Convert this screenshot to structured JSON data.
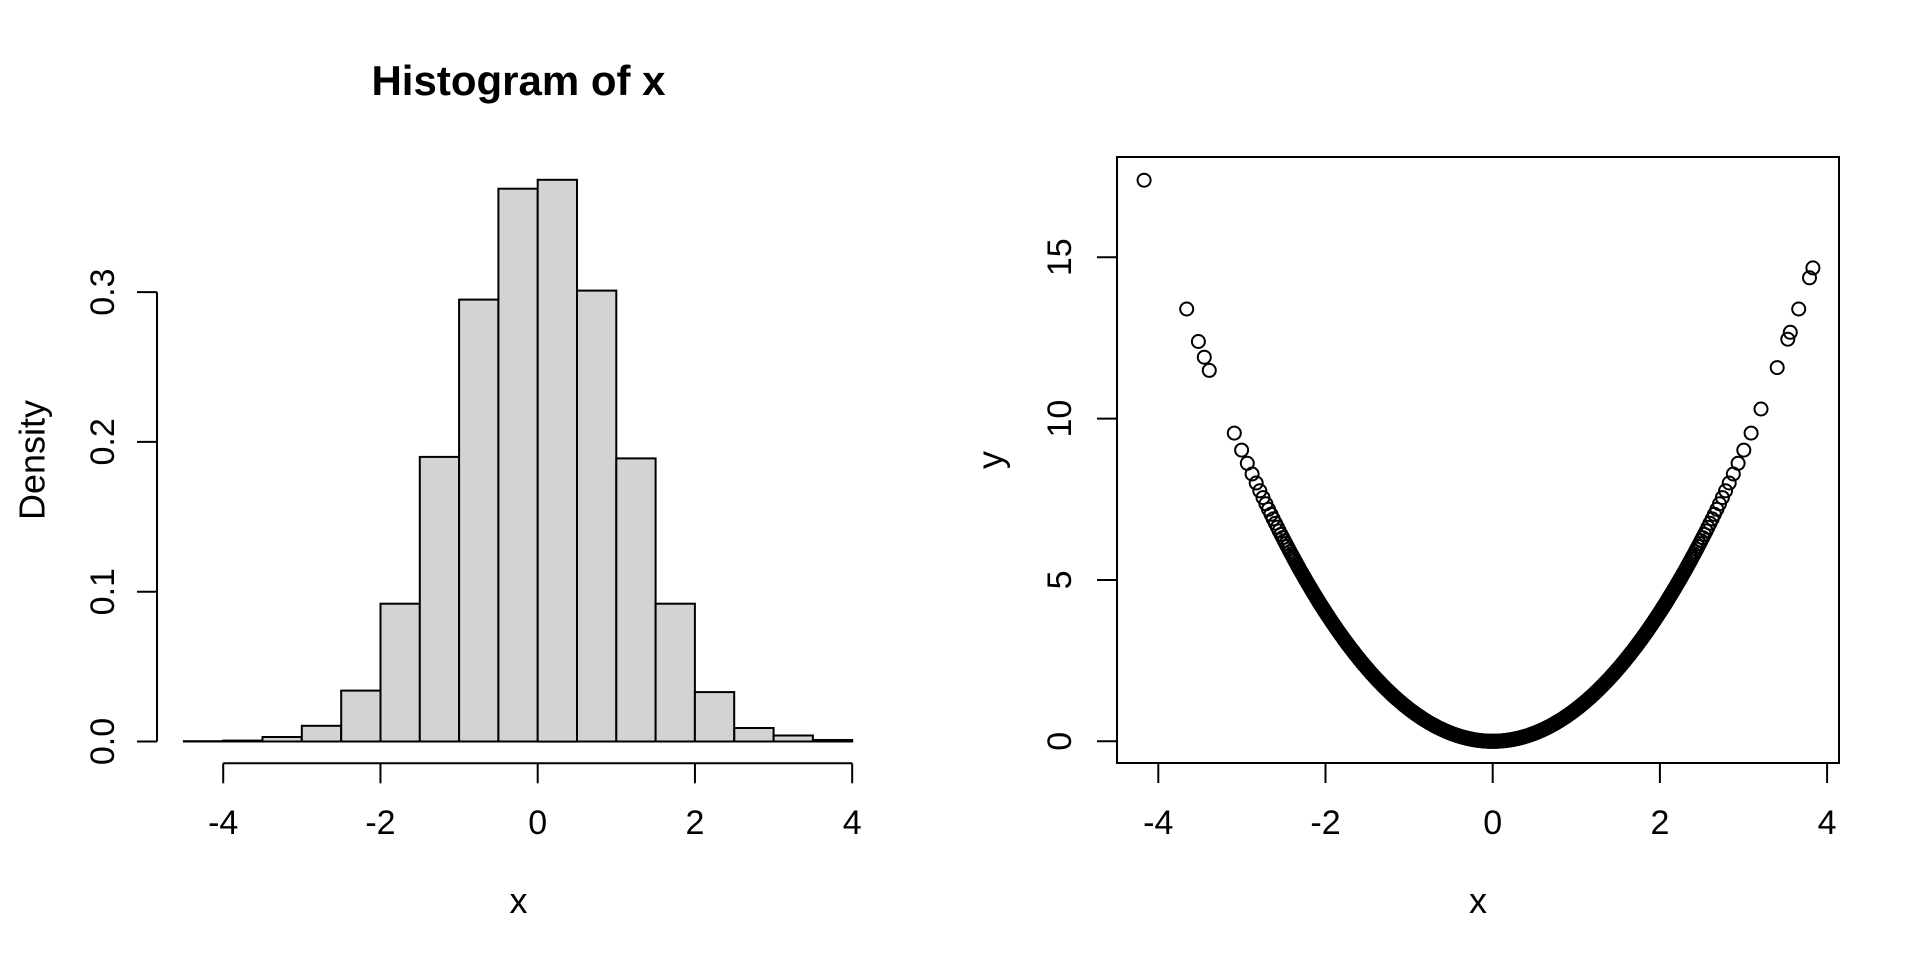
{
  "page": {
    "background": "#ffffff",
    "foreground": "#000000"
  },
  "chart_data": [
    {
      "type": "bar",
      "subtype": "histogram",
      "title": "Histogram of x",
      "xlabel": "x",
      "ylabel": "Density",
      "x_ticks": [
        -4,
        -2,
        0,
        2,
        4
      ],
      "x_tick_labels": [
        "-4",
        "-2",
        "0",
        "2",
        "4"
      ],
      "y_ticks": [
        0.0,
        0.1,
        0.2,
        0.3
      ],
      "y_tick_labels": [
        "0.0",
        "0.1",
        "0.2",
        "0.3"
      ],
      "breaks": [
        -4.5,
        -4.0,
        -3.5,
        -3.0,
        -2.5,
        -2.0,
        -1.5,
        -1.0,
        -0.5,
        0.0,
        0.5,
        1.0,
        1.5,
        2.0,
        2.5,
        3.0,
        3.5,
        4.0
      ],
      "densities": [
        0.0002,
        0.0006,
        0.003,
        0.0105,
        0.034,
        0.092,
        0.19,
        0.295,
        0.369,
        0.375,
        0.301,
        0.189,
        0.092,
        0.033,
        0.009,
        0.004,
        0.001
      ],
      "xlim": [
        -4.5,
        4.0
      ],
      "ylim": [
        0,
        0.375
      ],
      "bar_fill": "#d3d3d3",
      "bar_stroke": "#000000",
      "grid": false,
      "legend": null
    },
    {
      "type": "scatter",
      "title": "",
      "xlabel": "x",
      "ylabel": "y",
      "x_ticks": [
        -4,
        -2,
        0,
        2,
        4
      ],
      "x_tick_labels": [
        "-4",
        "-2",
        "0",
        "2",
        "4"
      ],
      "y_ticks": [
        0,
        5,
        10,
        15
      ],
      "y_tick_labels": [
        "0",
        "5",
        "10",
        "15"
      ],
      "relation": "y = x^2",
      "marker": "open-circle",
      "marker_color": "#000000",
      "xlim": [
        -4.49,
        4.14
      ],
      "ylim": [
        -0.68,
        18.1
      ],
      "outlier_x": [
        -4.17,
        -3.66,
        -3.52,
        -3.45,
        -3.39,
        3.53,
        3.56,
        3.66,
        3.79,
        3.83
      ],
      "bulk": {
        "distribution": "standard-normal-quantiles",
        "n": 3000,
        "x_min_clip": -3.17
      },
      "box": true,
      "grid": false,
      "legend": null
    }
  ]
}
